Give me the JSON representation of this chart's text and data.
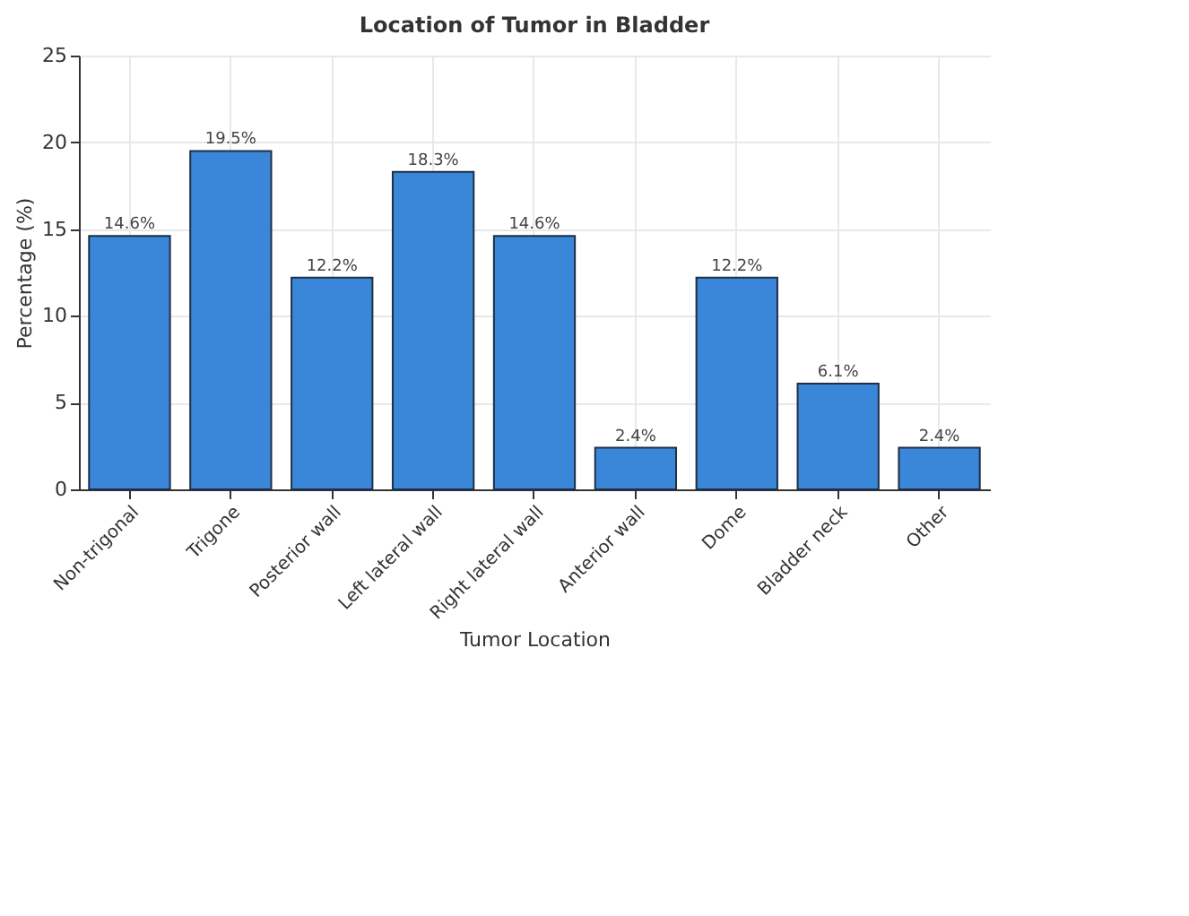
{
  "chart_data": {
    "type": "bar",
    "title": "Location of Tumor in Bladder",
    "xlabel": "Tumor Location",
    "ylabel": "Percentage (%)",
    "categories": [
      "Non-trigonal",
      "Trigone",
      "Posterior wall",
      "Left lateral wall",
      "Right lateral wall",
      "Anterior wall",
      "Dome",
      "Bladder neck",
      "Other"
    ],
    "values": [
      14.6,
      19.5,
      12.2,
      18.3,
      14.6,
      2.4,
      12.2,
      6.1,
      2.4
    ],
    "value_labels": [
      "14.6%",
      "19.5%",
      "12.2%",
      "18.3%",
      "14.6%",
      "2.4%",
      "12.2%",
      "6.1%",
      "2.4%"
    ],
    "color": "#3a86d8",
    "ylim": [
      0,
      25
    ],
    "yticks": [
      0,
      5,
      10,
      15,
      20,
      25
    ],
    "grid": true
  }
}
